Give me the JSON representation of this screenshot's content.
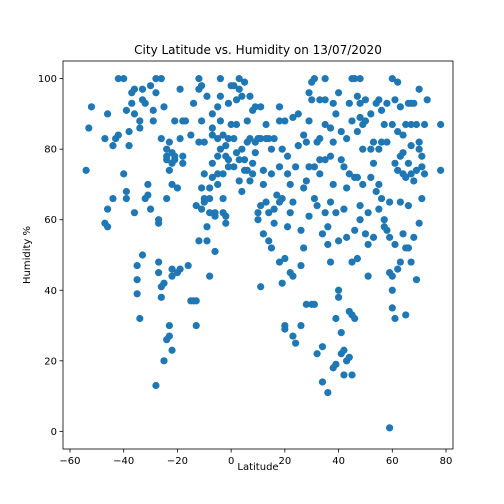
{
  "chart_data": {
    "type": "scatter",
    "title": "City Latitude vs. Humidity on 13/07/2020",
    "xlabel": "Latitude",
    "ylabel": "Humidity %",
    "xlim": [
      -60,
      80
    ],
    "ylim": [
      0,
      100
    ],
    "xticks": [
      -60,
      -40,
      -20,
      0,
      20,
      40,
      60,
      80
    ],
    "yticks": [
      0,
      20,
      40,
      60,
      80,
      100
    ],
    "grid": false,
    "point_color": "#1f77b4",
    "points": [
      [
        -54,
        74
      ],
      [
        -53,
        86
      ],
      [
        -52,
        92
      ],
      [
        -47,
        59
      ],
      [
        -47,
        83
      ],
      [
        -46,
        90
      ],
      [
        -46,
        63
      ],
      [
        -46,
        58
      ],
      [
        -44,
        66
      ],
      [
        -44,
        81
      ],
      [
        -43,
        83
      ],
      [
        -42,
        84
      ],
      [
        -42,
        100
      ],
      [
        -40,
        100
      ],
      [
        -40,
        73
      ],
      [
        -39,
        66
      ],
      [
        -39,
        68
      ],
      [
        -39,
        91
      ],
      [
        -38,
        81
      ],
      [
        -38,
        85
      ],
      [
        -37,
        93
      ],
      [
        -37,
        96
      ],
      [
        -36,
        97
      ],
      [
        -36,
        62
      ],
      [
        -36,
        90
      ],
      [
        -35,
        47
      ],
      [
        -35,
        43
      ],
      [
        -35,
        39
      ],
      [
        -34,
        32
      ],
      [
        -34,
        86
      ],
      [
        -34,
        88
      ],
      [
        -33,
        97
      ],
      [
        -33,
        50
      ],
      [
        -33,
        94
      ],
      [
        -32,
        66
      ],
      [
        -32,
        93
      ],
      [
        -31,
        67
      ],
      [
        -31,
        70
      ],
      [
        -30,
        98
      ],
      [
        -30,
        63
      ],
      [
        -29,
        88
      ],
      [
        -29,
        91
      ],
      [
        -28,
        100
      ],
      [
        -28,
        96
      ],
      [
        -28,
        13
      ],
      [
        -27,
        59
      ],
      [
        -27,
        60
      ],
      [
        -27,
        45
      ],
      [
        -27,
        48
      ],
      [
        -26,
        100
      ],
      [
        -26,
        83
      ],
      [
        -26,
        41
      ],
      [
        -26,
        38
      ],
      [
        -25,
        42
      ],
      [
        -25,
        92
      ],
      [
        -25,
        20
      ],
      [
        -24,
        77
      ],
      [
        -24,
        78
      ],
      [
        -24,
        80
      ],
      [
        -24,
        66
      ],
      [
        -24,
        26
      ],
      [
        -23,
        82
      ],
      [
        -23,
        74
      ],
      [
        -23,
        30
      ],
      [
        -23,
        27
      ],
      [
        -22,
        23
      ],
      [
        -22,
        70
      ],
      [
        -22,
        79
      ],
      [
        -22,
        76
      ],
      [
        -22,
        44
      ],
      [
        -22,
        46
      ],
      [
        -21,
        88
      ],
      [
        -21,
        77
      ],
      [
        -21,
        78
      ],
      [
        -20,
        45
      ],
      [
        -20,
        69
      ],
      [
        -19,
        97
      ],
      [
        -19,
        83
      ],
      [
        -19,
        46
      ],
      [
        -18,
        76
      ],
      [
        -18,
        78
      ],
      [
        -18,
        88
      ],
      [
        -17,
        88
      ],
      [
        -16,
        47
      ],
      [
        -15,
        37
      ],
      [
        -15,
        84
      ],
      [
        -14,
        37
      ],
      [
        -14,
        93
      ],
      [
        -13,
        37
      ],
      [
        -13,
        30
      ],
      [
        -13,
        64
      ],
      [
        -12,
        100
      ],
      [
        -12,
        97
      ],
      [
        -12,
        82
      ],
      [
        -12,
        54
      ],
      [
        -11,
        98
      ],
      [
        -11,
        63
      ],
      [
        -11,
        69
      ],
      [
        -11,
        88
      ],
      [
        -10,
        73
      ],
      [
        -10,
        65
      ],
      [
        -10,
        66
      ],
      [
        -10,
        82
      ],
      [
        -9,
        95
      ],
      [
        -9,
        58
      ],
      [
        -9,
        54
      ],
      [
        -8,
        44
      ],
      [
        -8,
        62
      ],
      [
        -8,
        66
      ],
      [
        -8,
        69
      ],
      [
        -7,
        72
      ],
      [
        -7,
        76
      ],
      [
        -7,
        84
      ],
      [
        -7,
        86
      ],
      [
        -7,
        90
      ],
      [
        -6,
        61
      ],
      [
        -6,
        51
      ],
      [
        -6,
        62
      ],
      [
        -5,
        70
      ],
      [
        -5,
        73
      ],
      [
        -5,
        92
      ],
      [
        -5,
        78
      ],
      [
        -5,
        83
      ],
      [
        -4,
        100
      ],
      [
        -4,
        80
      ],
      [
        -4,
        88
      ],
      [
        -4,
        95
      ],
      [
        -3,
        84
      ],
      [
        -3,
        66
      ],
      [
        -3,
        73
      ],
      [
        -3,
        62
      ],
      [
        -2,
        78
      ],
      [
        -2,
        81
      ],
      [
        -2,
        61
      ],
      [
        -2,
        59
      ],
      [
        -1,
        75
      ],
      [
        -1,
        83
      ],
      [
        -1,
        77
      ],
      [
        -1,
        93
      ],
      [
        0,
        87
      ],
      [
        0,
        98
      ],
      [
        1,
        75
      ],
      [
        1,
        83
      ],
      [
        1,
        98
      ],
      [
        2,
        87
      ],
      [
        2,
        94
      ],
      [
        2,
        79
      ],
      [
        3,
        97
      ],
      [
        3,
        100
      ],
      [
        3,
        71
      ],
      [
        3,
        77
      ],
      [
        4,
        80
      ],
      [
        4,
        68
      ],
      [
        4,
        95
      ],
      [
        5,
        99
      ],
      [
        5,
        77
      ],
      [
        5,
        74
      ],
      [
        6,
        88
      ],
      [
        6,
        82
      ],
      [
        6,
        74
      ],
      [
        7,
        83
      ],
      [
        7,
        95
      ],
      [
        7,
        71
      ],
      [
        8,
        91
      ],
      [
        8,
        76
      ],
      [
        8,
        73
      ],
      [
        9,
        92
      ],
      [
        9,
        82
      ],
      [
        9,
        79
      ],
      [
        10,
        60
      ],
      [
        10,
        83
      ],
      [
        10,
        62
      ],
      [
        11,
        41
      ],
      [
        11,
        92
      ],
      [
        11,
        83
      ],
      [
        11,
        64
      ],
      [
        12,
        74
      ],
      [
        12,
        70
      ],
      [
        12,
        56
      ],
      [
        13,
        87
      ],
      [
        13,
        83
      ],
      [
        13,
        65
      ],
      [
        14,
        83
      ],
      [
        14,
        62
      ],
      [
        14,
        54
      ],
      [
        15,
        80
      ],
      [
        15,
        73
      ],
      [
        15,
        52
      ],
      [
        16,
        83
      ],
      [
        16,
        63
      ],
      [
        16,
        59
      ],
      [
        17,
        67
      ],
      [
        18,
        48
      ],
      [
        18,
        92
      ],
      [
        18,
        88
      ],
      [
        18,
        75
      ],
      [
        18,
        65
      ],
      [
        19,
        66
      ],
      [
        19,
        42
      ],
      [
        19,
        80
      ],
      [
        20,
        88
      ],
      [
        20,
        30
      ],
      [
        20,
        29
      ],
      [
        20,
        49
      ],
      [
        21,
        73
      ],
      [
        21,
        78
      ],
      [
        21,
        58
      ],
      [
        22,
        70
      ],
      [
        22,
        62
      ],
      [
        22,
        45
      ],
      [
        23,
        44
      ],
      [
        23,
        27
      ],
      [
        23,
        89
      ],
      [
        23,
        65
      ],
      [
        24,
        25
      ],
      [
        24,
        75
      ],
      [
        25,
        90
      ],
      [
        25,
        81
      ],
      [
        26,
        30
      ],
      [
        26,
        57
      ],
      [
        26,
        47
      ],
      [
        27,
        52
      ],
      [
        27,
        84
      ],
      [
        27,
        69
      ],
      [
        28,
        36
      ],
      [
        28,
        82
      ],
      [
        28,
        71
      ],
      [
        29,
        88
      ],
      [
        29,
        96
      ],
      [
        29,
        75
      ],
      [
        29,
        61
      ],
      [
        30,
        36
      ],
      [
        30,
        99
      ],
      [
        30,
        94
      ],
      [
        31,
        100
      ],
      [
        31,
        66
      ],
      [
        31,
        75
      ],
      [
        31,
        36
      ],
      [
        32,
        82
      ],
      [
        32,
        22
      ],
      [
        32,
        64
      ],
      [
        33,
        83
      ],
      [
        33,
        94
      ],
      [
        33,
        77
      ],
      [
        33,
        73
      ],
      [
        34,
        24
      ],
      [
        34,
        14
      ],
      [
        34,
        56
      ],
      [
        35,
        100
      ],
      [
        35,
        94
      ],
      [
        35,
        77
      ],
      [
        35,
        87
      ],
      [
        35,
        62
      ],
      [
        36,
        58
      ],
      [
        36,
        11
      ],
      [
        36,
        53
      ],
      [
        37,
        65
      ],
      [
        37,
        78
      ],
      [
        37,
        86
      ],
      [
        37,
        48
      ],
      [
        38,
        93
      ],
      [
        38,
        82
      ],
      [
        38,
        70
      ],
      [
        38,
        18
      ],
      [
        39,
        90
      ],
      [
        39,
        62
      ],
      [
        39,
        32
      ],
      [
        39,
        19
      ],
      [
        40,
        40
      ],
      [
        40,
        54
      ],
      [
        40,
        96
      ],
      [
        40,
        38
      ],
      [
        41,
        85
      ],
      [
        41,
        77
      ],
      [
        41,
        22
      ],
      [
        41,
        28
      ],
      [
        42,
        75
      ],
      [
        42,
        63
      ],
      [
        42,
        23
      ],
      [
        42,
        16
      ],
      [
        43,
        55
      ],
      [
        43,
        83
      ],
      [
        43,
        69
      ],
      [
        43,
        20
      ],
      [
        44,
        93
      ],
      [
        44,
        73
      ],
      [
        44,
        34
      ],
      [
        44,
        21
      ],
      [
        45,
        100
      ],
      [
        45,
        88
      ],
      [
        45,
        48
      ],
      [
        45,
        33
      ],
      [
        45,
        16
      ],
      [
        46,
        100
      ],
      [
        46,
        72
      ],
      [
        46,
        57
      ],
      [
        46,
        32
      ],
      [
        47,
        95
      ],
      [
        47,
        85
      ],
      [
        47,
        72
      ],
      [
        47,
        49
      ],
      [
        48,
        100
      ],
      [
        48,
        93
      ],
      [
        48,
        89
      ],
      [
        48,
        64
      ],
      [
        48,
        60
      ],
      [
        49,
        87
      ],
      [
        49,
        80
      ],
      [
        49,
        70
      ],
      [
        50,
        56
      ],
      [
        50,
        94
      ],
      [
        50,
        88
      ],
      [
        51,
        62
      ],
      [
        51,
        53
      ],
      [
        51,
        44
      ],
      [
        52,
        90
      ],
      [
        52,
        80
      ],
      [
        52,
        72
      ],
      [
        53,
        55
      ],
      [
        53,
        82
      ],
      [
        53,
        76
      ],
      [
        54,
        93
      ],
      [
        54,
        68
      ],
      [
        55,
        94
      ],
      [
        55,
        80
      ],
      [
        55,
        70
      ],
      [
        55,
        63
      ],
      [
        56,
        91
      ],
      [
        56,
        66
      ],
      [
        56,
        82
      ],
      [
        57,
        58
      ],
      [
        57,
        60
      ],
      [
        57,
        87
      ],
      [
        58,
        93
      ],
      [
        58,
        82
      ],
      [
        58,
        57
      ],
      [
        59,
        45
      ],
      [
        59,
        65
      ],
      [
        59,
        55
      ],
      [
        59,
        1
      ],
      [
        60,
        100
      ],
      [
        60,
        87
      ],
      [
        60,
        35
      ],
      [
        60,
        40
      ],
      [
        60,
        44
      ],
      [
        61,
        94
      ],
      [
        61,
        76
      ],
      [
        61,
        53
      ],
      [
        61,
        32
      ],
      [
        62,
        99
      ],
      [
        62,
        85
      ],
      [
        62,
        74
      ],
      [
        62,
        46
      ],
      [
        63,
        92
      ],
      [
        63,
        78
      ],
      [
        63,
        65
      ],
      [
        63,
        48
      ],
      [
        64,
        84
      ],
      [
        64,
        79
      ],
      [
        64,
        73
      ],
      [
        64,
        56
      ],
      [
        65,
        87
      ],
      [
        65,
        72
      ],
      [
        65,
        52
      ],
      [
        65,
        33
      ],
      [
        66,
        93
      ],
      [
        66,
        76
      ],
      [
        66,
        64
      ],
      [
        66,
        52
      ],
      [
        67,
        93
      ],
      [
        67,
        87
      ],
      [
        67,
        81
      ],
      [
        67,
        73
      ],
      [
        67,
        48
      ],
      [
        68,
        93
      ],
      [
        68,
        71
      ],
      [
        68,
        55
      ],
      [
        69,
        87
      ],
      [
        69,
        74
      ],
      [
        69,
        43
      ],
      [
        70,
        97
      ],
      [
        70,
        82
      ],
      [
        70,
        80
      ],
      [
        70,
        59
      ],
      [
        71,
        78
      ],
      [
        71,
        75
      ],
      [
        71,
        66
      ],
      [
        72,
        87
      ],
      [
        72,
        73
      ],
      [
        73,
        94
      ],
      [
        78,
        74
      ],
      [
        78,
        87
      ]
    ]
  }
}
